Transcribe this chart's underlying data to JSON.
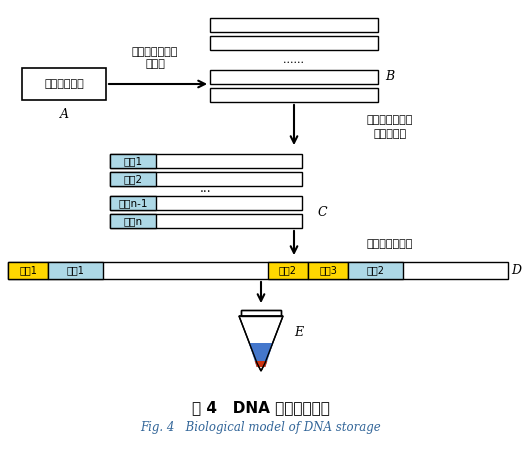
{
  "title_zh": "图 4   DNA 存储生物模型",
  "title_en": "Fig. 4   Biological model of DNA storage",
  "bg_color": "#ffffff",
  "file_box_text": "需存储的文件",
  "file_label": "A",
  "arrow_text_1": "编码为若干段碱",
  "arrow_text_2": "基短链",
  "strand_dots": "......",
  "strand_label": "B",
  "addr_label_text_1": "每段碱基短链中",
  "addr_label_text_2": "加入地址位",
  "addr_label_C": "C",
  "addr_rows": [
    "地址1",
    "地址2",
    "地址n-1",
    "地址n"
  ],
  "addr_dots": "...",
  "primer_label_text": "两端各加入引物",
  "primer_label_D": "D",
  "primer_label_E": "E",
  "primer1_text": "引物1",
  "addr1_text": "地址1",
  "primer2_text": "引物2",
  "primer3_text": "引物3",
  "addr2_text": "地址2",
  "yellow_color": "#FFD700",
  "cyan_color": "#ADD8E6",
  "white_color": "#FFFFFF",
  "black": "#000000",
  "blue_liquid": "#3366CC",
  "red_liquid": "#CC2200"
}
